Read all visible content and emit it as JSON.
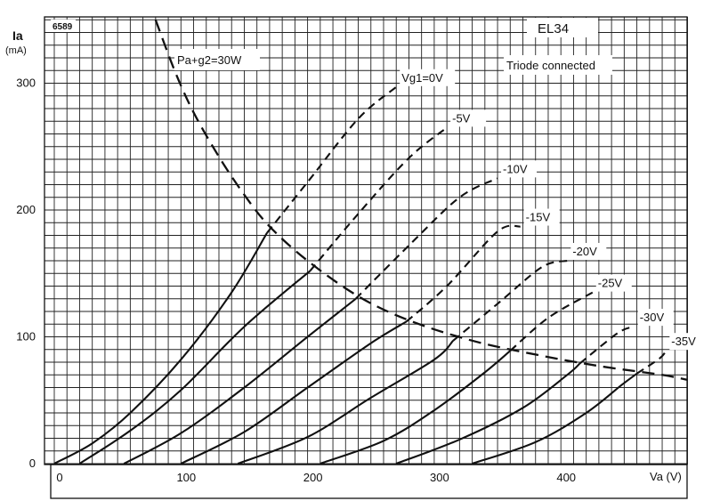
{
  "chart_data": {
    "type": "line",
    "figure_number": "6589",
    "tube": "EL34",
    "subtitle": "Triode connected",
    "power_label": "Pa+g2=30W",
    "xlabel": "Va (V)",
    "ylabel": "Ia",
    "yunit": "(mA)",
    "xlim": [
      0,
      500
    ],
    "ylim": [
      0,
      350
    ],
    "x_ticks": [
      0,
      100,
      200,
      300,
      400
    ],
    "y_ticks": [
      0,
      100,
      200,
      300
    ],
    "grid": true,
    "series": [
      {
        "name": "Vg1=0V",
        "solid": [
          [
            0,
            0
          ],
          [
            30,
            16
          ],
          [
            60,
            40
          ],
          [
            100,
            82
          ],
          [
            140,
            135
          ],
          [
            168,
            182
          ]
        ],
        "dashed": [
          [
            168,
            182
          ],
          [
            200,
            222
          ],
          [
            240,
            272
          ],
          [
            270,
            297
          ]
        ]
      },
      {
        "name": "-5V",
        "solid": [
          [
            20,
            0
          ],
          [
            60,
            26
          ],
          [
            100,
            58
          ],
          [
            150,
            108
          ],
          [
            202,
            152
          ]
        ],
        "dashed": [
          [
            202,
            152
          ],
          [
            240,
            197
          ],
          [
            280,
            241
          ],
          [
            310,
            265
          ]
        ]
      },
      {
        "name": "-10V",
        "solid": [
          [
            55,
            0
          ],
          [
            100,
            24
          ],
          [
            150,
            60
          ],
          [
            200,
            100
          ],
          [
            238,
            130
          ]
        ],
        "dashed": [
          [
            238,
            130
          ],
          [
            280,
            172
          ],
          [
            320,
            210
          ],
          [
            350,
            225
          ]
        ]
      },
      {
        "name": "-15V",
        "solid": [
          [
            100,
            0
          ],
          [
            150,
            25
          ],
          [
            200,
            60
          ],
          [
            250,
            95
          ],
          [
            278,
            112
          ]
        ],
        "dashed": [
          [
            278,
            112
          ],
          [
            310,
            140
          ],
          [
            350,
            183
          ],
          [
            368,
            187
          ]
        ]
      },
      {
        "name": "-20V",
        "solid": [
          [
            145,
            0
          ],
          [
            200,
            21
          ],
          [
            250,
            52
          ],
          [
            300,
            82
          ],
          [
            315,
            97
          ]
        ],
        "dashed": [
          [
            315,
            97
          ],
          [
            350,
            126
          ],
          [
            385,
            155
          ],
          [
            405,
            160
          ]
        ]
      },
      {
        "name": "-25V",
        "solid": [
          [
            210,
            0
          ],
          [
            260,
            18
          ],
          [
            300,
            42
          ],
          [
            340,
            72
          ],
          [
            360,
            89
          ]
        ],
        "dashed": [
          [
            360,
            89
          ],
          [
            390,
            115
          ],
          [
            425,
            135
          ]
        ]
      },
      {
        "name": "-30V",
        "solid": [
          [
            270,
            0
          ],
          [
            320,
            19
          ],
          [
            370,
            44
          ],
          [
            405,
            70
          ],
          [
            415,
            79
          ]
        ],
        "dashed": [
          [
            415,
            79
          ],
          [
            445,
            103
          ],
          [
            458,
            108
          ]
        ]
      },
      {
        "name": "-35V",
        "solid": [
          [
            330,
            0
          ],
          [
            380,
            17
          ],
          [
            420,
            40
          ],
          [
            448,
            62
          ],
          [
            460,
            71
          ]
        ],
        "dashed": [
          [
            460,
            71
          ],
          [
            478,
            83
          ],
          [
            483,
            89
          ]
        ]
      }
    ],
    "power_curve": [
      [
        80,
        350
      ],
      [
        95,
        310
      ],
      [
        110,
        277
      ],
      [
        130,
        242
      ],
      [
        150,
        212
      ],
      [
        170,
        187
      ],
      [
        200,
        160
      ],
      [
        240,
        132
      ],
      [
        280,
        113
      ],
      [
        330,
        97
      ],
      [
        380,
        86
      ],
      [
        430,
        77
      ],
      [
        480,
        70
      ],
      [
        500,
        66
      ]
    ]
  }
}
